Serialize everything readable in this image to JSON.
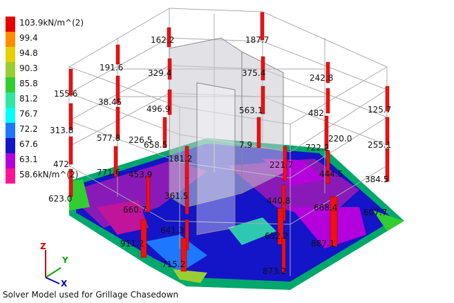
{
  "legend": {
    "items": [
      {
        "label": "103.9kN/m^(2)",
        "color": "#e60000"
      },
      {
        "label": "99.4",
        "color": "#ff8c00"
      },
      {
        "label": "94.8",
        "color": "#e6d000"
      },
      {
        "label": "90.3",
        "color": "#9acd32"
      },
      {
        "label": "85.8",
        "color": "#32cd32"
      },
      {
        "label": "81.2",
        "color": "#2ee8a0"
      },
      {
        "label": "76.7",
        "color": "#00ffff"
      },
      {
        "label": "72.2",
        "color": "#1e78ff"
      },
      {
        "label": "67.6",
        "color": "#1414c8"
      },
      {
        "label": "63.1",
        "color": "#b400dc"
      },
      {
        "label": "58.6kN/m^(2)",
        "color": "#ff1493"
      }
    ]
  },
  "caption": "Solver Model used for Grillage Chasedown",
  "axes": {
    "z": "Z",
    "y": "Y",
    "x": "X",
    "z_color": "#cc0000",
    "y_color": "#00aa00",
    "x_color": "#0000cc"
  },
  "column_values": [
    "162.2",
    "187.7",
    "191.6",
    "329.4",
    "375.4",
    "242.8",
    "155.6",
    "38.45",
    "496.9",
    "563.1",
    "482",
    "125.7",
    "313.8",
    "577.8",
    "226.5",
    "658.5",
    "7.9",
    "220.0",
    "722.2",
    "255.1",
    "472",
    "771.6",
    "181.2",
    "221.7",
    "453.9",
    "444.5",
    "384.5",
    "623.0",
    "361.5",
    "440.8",
    "660.7",
    "668.4",
    "607.7",
    "641.3",
    "652.2",
    "911.2",
    "887.1",
    "715.2",
    "873.2"
  ]
}
